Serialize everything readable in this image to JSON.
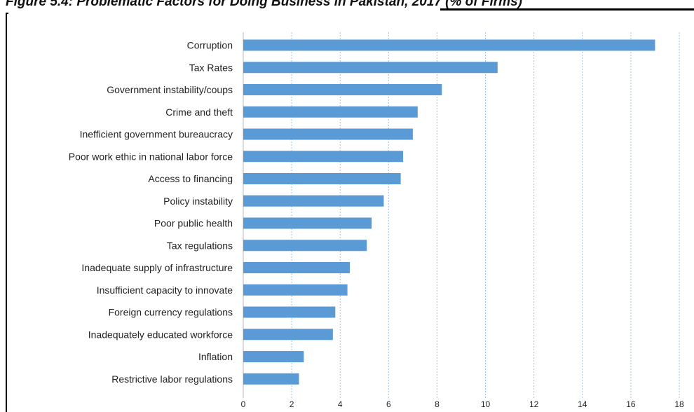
{
  "figure": {
    "title": "Figure 5.4: Problematic Factors for Doing Business in Pakistan, 2017 (% of Firms)"
  },
  "chart_data": {
    "type": "bar",
    "orientation": "horizontal",
    "title": "",
    "xlabel": "",
    "ylabel": "",
    "categories": [
      "Corruption",
      "Tax Rates",
      "Government instability/coups",
      "Crime and theft",
      "Inefficient government bureaucracy",
      "Poor work ethic in national labor force",
      "Access to financing",
      "Policy instability",
      "Poor public health",
      "Tax regulations",
      "Inadequate supply of infrastructure",
      "Insufficient capacity to innovate",
      "Foreign currency regulations",
      "Inadequately educated workforce",
      "Inflation",
      "Restrictive labor regulations"
    ],
    "values": [
      17.0,
      10.5,
      8.2,
      7.2,
      7.0,
      6.6,
      6.5,
      5.8,
      5.3,
      5.1,
      4.4,
      4.3,
      3.8,
      3.7,
      2.5,
      2.3
    ],
    "xlim": [
      0,
      18
    ],
    "xticks": [
      0,
      2,
      4,
      6,
      8,
      10,
      12,
      14,
      16,
      18
    ],
    "grid": "vertical dashed",
    "legend": "none",
    "colors": {
      "bar": "#5b9bd5",
      "grid": "#9dc3e6",
      "text": "#222222"
    }
  }
}
